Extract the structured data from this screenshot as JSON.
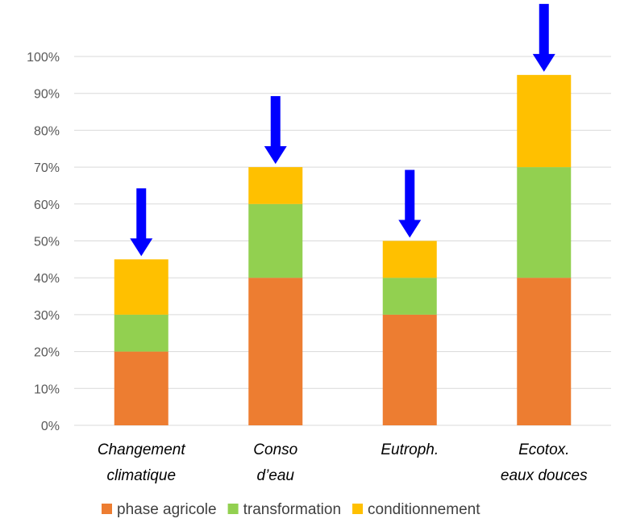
{
  "chart_data": {
    "type": "bar",
    "stacked": true,
    "categories": [
      [
        "Changement",
        "climatique"
      ],
      [
        "Conso",
        "d’eau"
      ],
      [
        "Eutroph."
      ],
      [
        "Ecotox.",
        "eaux douces"
      ]
    ],
    "series": [
      {
        "name": "phase agricole",
        "color": "#ED7D31",
        "values": [
          20,
          40,
          30,
          40
        ]
      },
      {
        "name": "transformation",
        "color": "#92D050",
        "values": [
          10,
          20,
          10,
          30
        ]
      },
      {
        "name": "conditionnement",
        "color": "#FFC000",
        "values": [
          15,
          10,
          10,
          25
        ]
      }
    ],
    "ylim": [
      0,
      100
    ],
    "yticks": [
      "0%",
      "10%",
      "20%",
      "30%",
      "40%",
      "50%",
      "60%",
      "70%",
      "80%",
      "90%",
      "100%"
    ],
    "grid": true,
    "legend_position": "bottom",
    "annotations": {
      "arrows": "downward blue arrow above each bar",
      "arrow_color": "#0000FF"
    }
  }
}
